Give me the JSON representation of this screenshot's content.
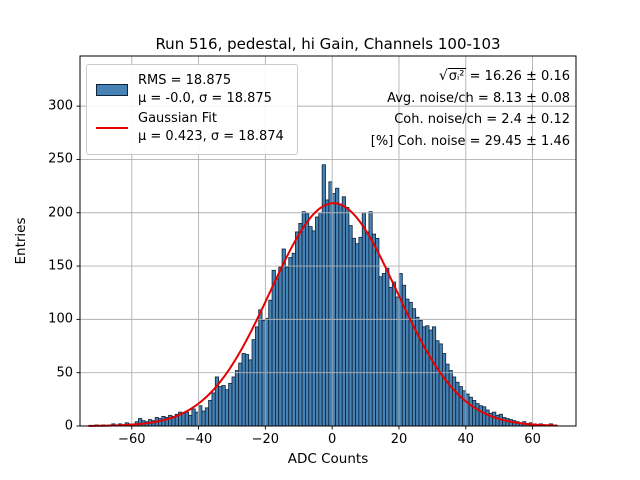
{
  "chart_data": {
    "type": "bar",
    "subtype": "histogram-with-gaussian-fit",
    "title": "Run 516, pedestal, hi Gain, Channels 100-103",
    "xlabel": "ADC Counts",
    "ylabel": "Entries",
    "xlim": [
      -75.5,
      73.0
    ],
    "ylim": [
      0,
      347
    ],
    "grid": true,
    "grid_color": "#b0b0b0",
    "bar_color": "#4682b4",
    "bar_edge_color": "#0e2238",
    "fit_color": "#e60000",
    "background": "#ffffff",
    "xticks": [
      -60,
      -40,
      -20,
      0,
      20,
      40,
      60
    ],
    "xtick_labels": [
      "−60",
      "−40",
      "−20",
      "0",
      "20",
      "40",
      "60"
    ],
    "yticks": [
      0,
      50,
      100,
      150,
      200,
      250,
      300
    ],
    "ytick_labels": [
      "0",
      "50",
      "100",
      "150",
      "200",
      "250",
      "300"
    ],
    "bin_start": -71,
    "bin_width": 1,
    "counts": [
      1,
      0,
      1,
      0,
      1,
      2,
      1,
      2,
      1,
      3,
      2,
      2,
      4,
      7,
      5,
      4,
      6,
      5,
      8,
      7,
      9,
      8,
      10,
      9,
      11,
      13,
      12,
      13,
      10,
      16,
      13,
      19,
      14,
      17,
      24,
      31,
      46,
      37,
      38,
      34,
      40,
      46,
      52,
      59,
      68,
      67,
      62,
      81,
      93,
      109,
      99,
      101,
      118,
      146,
      138,
      149,
      166,
      149,
      158,
      162,
      182,
      190,
      201,
      199,
      187,
      183,
      196,
      200,
      245,
      212,
      229,
      218,
      223,
      208,
      215,
      205,
      188,
      176,
      171,
      177,
      200,
      182,
      201,
      180,
      176,
      140,
      143,
      148,
      130,
      135,
      121,
      143,
      132,
      119,
      116,
      110,
      102,
      99,
      93,
      94,
      90,
      93,
      80,
      77,
      68,
      58,
      52,
      46,
      41,
      37,
      33,
      30,
      27,
      24,
      21,
      19,
      18,
      15,
      12,
      13,
      10,
      11,
      8,
      7,
      6,
      5,
      4,
      3,
      4,
      2,
      3,
      2,
      1,
      2,
      1,
      1,
      2,
      1
    ],
    "fit": {
      "label": "Gaussian Fit",
      "amplitude": 209,
      "mu": 0.423,
      "sigma": 18.874,
      "x_range": [
        -73,
        67.5
      ]
    }
  },
  "legend": {
    "entries": [
      {
        "swatch": "histogram",
        "line1": "RMS = 18.875",
        "line2": "μ = -0.0, σ = 18.875"
      },
      {
        "swatch": "fit-line",
        "line1": "Gaussian Fit",
        "line2": "μ = 0.423, σ = 18.874"
      }
    ]
  },
  "stats": {
    "line1": {
      "sqrt": "√",
      "radicand": "σᵢ²",
      "rest": " = 16.26 ± 0.16"
    },
    "line2": "Avg. noise/ch = 8.13 ± 0.08",
    "line3": "Coh. noise/ch = 2.4 ± 0.12",
    "line4": "[%] Coh. noise = 29.45 ± 1.46"
  }
}
